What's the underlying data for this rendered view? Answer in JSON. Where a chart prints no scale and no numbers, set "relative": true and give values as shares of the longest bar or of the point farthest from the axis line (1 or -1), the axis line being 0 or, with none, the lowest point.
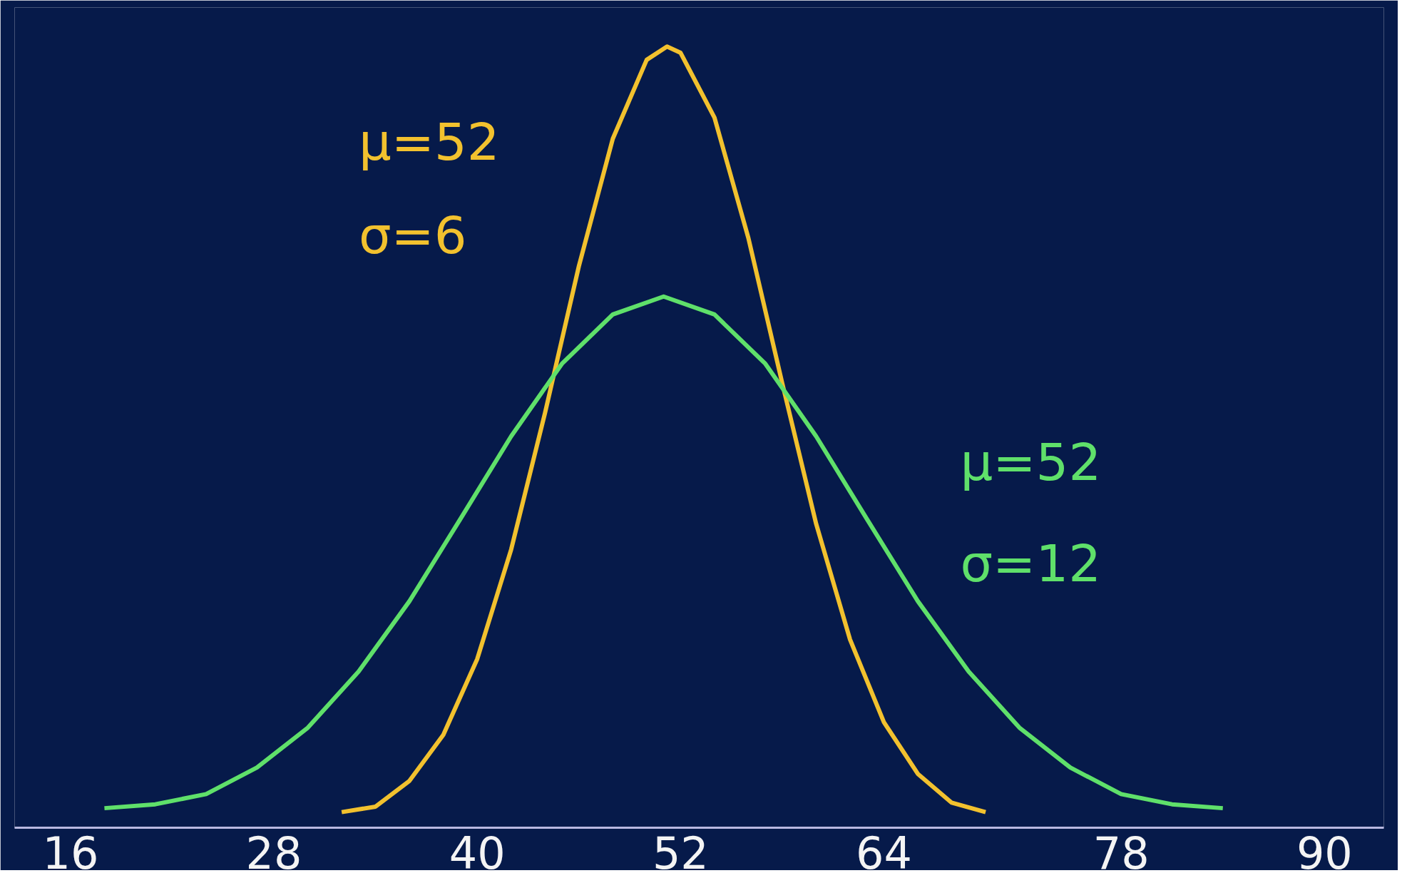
{
  "chart_data": {
    "type": "line",
    "relative": true,
    "xlim": [
      12.7,
      93.5
    ],
    "xticks": [
      16,
      28,
      40,
      52,
      64,
      78,
      90
    ],
    "grid": false,
    "marker": "none",
    "line_style": "solid",
    "series": [
      {
        "color": "#f2c12e",
        "x": [
          32,
          34,
          36,
          38,
          40,
          42,
          44,
          46,
          48,
          50,
          51.2,
          52,
          54,
          56,
          58,
          60,
          62,
          64,
          66,
          68,
          70
        ],
        "values": [
          0.02,
          0.027,
          0.06,
          0.119,
          0.216,
          0.356,
          0.531,
          0.719,
          0.882,
          0.983,
          1,
          0.992,
          0.909,
          0.755,
          0.569,
          0.389,
          0.241,
          0.135,
          0.069,
          0.032,
          0.02
        ]
      },
      {
        "color": "#5fe06a",
        "x": [
          18,
          21,
          24,
          27,
          30,
          33,
          36,
          39,
          42,
          45,
          48,
          51,
          54,
          57,
          60,
          63,
          66,
          69,
          72,
          75,
          78,
          81,
          84
        ],
        "values": [
          0.025,
          0.03,
          0.043,
          0.077,
          0.128,
          0.2,
          0.29,
          0.395,
          0.501,
          0.594,
          0.657,
          0.68,
          0.657,
          0.594,
          0.501,
          0.395,
          0.29,
          0.2,
          0.128,
          0.077,
          0.043,
          0.03,
          0.025
        ]
      }
    ],
    "annotations": [
      "μ=52",
      "σ=6",
      "μ=52",
      "σ=12"
    ]
  }
}
